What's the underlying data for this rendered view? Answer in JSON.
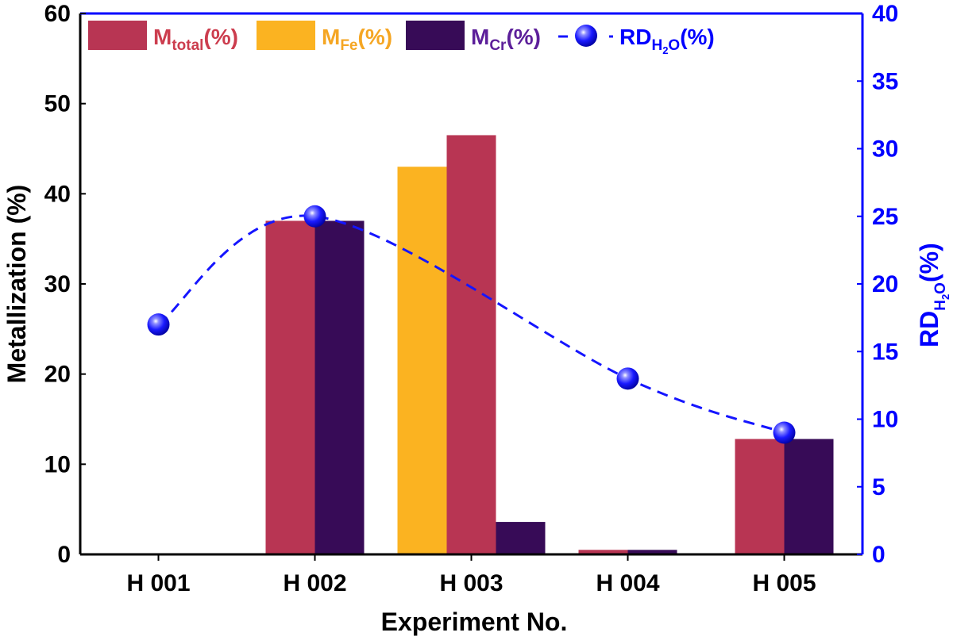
{
  "chart_data": {
    "type": "bar",
    "categories": [
      "H 001",
      "H 002",
      "H 003",
      "H 004",
      "H 005"
    ],
    "xlabel": "Experiment No.",
    "ylabel": "Metallization (%)",
    "ylim": [
      0,
      60
    ],
    "yticks": [
      "0",
      "10",
      "20",
      "30",
      "40",
      "50",
      "60"
    ],
    "y2label": {
      "main": "RD",
      "sub1": "H",
      "sub2": "2",
      "sub3": "O",
      "unit": "(%)"
    },
    "y2lim": [
      0,
      40
    ],
    "y2ticks": [
      "0",
      "5",
      "10",
      "15",
      "20",
      "25",
      "30",
      "35",
      "40"
    ],
    "grid": false,
    "legend_position": "top",
    "series": [
      {
        "name": "M_total(%)",
        "label_main": "M",
        "label_sub": "total",
        "label_unit": "(%)",
        "kind": "bar",
        "color": "#b83553",
        "text_color": "#cc3d4e",
        "values": [
          0,
          37,
          46.5,
          0.5,
          12.8
        ]
      },
      {
        "name": "M_Fe(%)",
        "label_main": "M",
        "label_sub": "Fe",
        "label_unit": "(%)",
        "kind": "bar",
        "color": "#fbb321",
        "text_color": "#f5a623",
        "values": [
          0,
          0,
          43,
          0,
          0
        ]
      },
      {
        "name": "M_Cr(%)",
        "label_main": "M",
        "label_sub": "Cr",
        "label_unit": "(%)",
        "kind": "bar",
        "color": "#370b57",
        "text_color": "#5c1f9a",
        "values": [
          0,
          37,
          3.6,
          0.5,
          12.8
        ]
      },
      {
        "name": "RD_H2O(%)",
        "label_main": "RD",
        "label_sub": "H2O",
        "label_unit": "(%)",
        "kind": "line",
        "axis": "right",
        "color": "#1515ff",
        "text_color": "#0000ff",
        "values": [
          17,
          25,
          null,
          13,
          9
        ]
      }
    ],
    "bar_order_per_category": [
      [
        "M_total(%)",
        "M_Cr(%)"
      ],
      [
        "M_total(%)",
        "M_Cr(%)"
      ],
      [
        "M_Fe(%)",
        "M_total(%)",
        "M_Cr(%)"
      ],
      [
        "M_total(%)",
        "M_Cr(%)"
      ],
      [
        "M_total(%)",
        "M_Cr(%)"
      ]
    ]
  }
}
